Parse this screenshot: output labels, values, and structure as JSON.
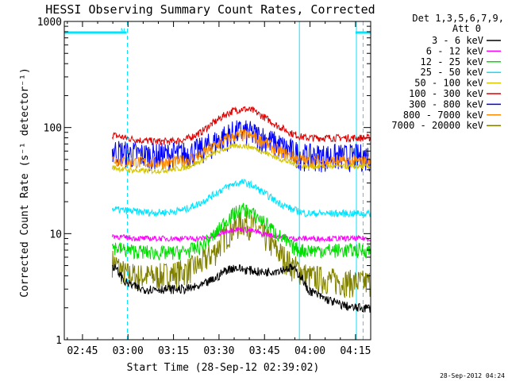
{
  "chart_data": {
    "type": "line",
    "title": "HESSI Observing Summary Count Rates, Corrected",
    "xlabel": "Start Time (28-Sep-12 02:39:02)",
    "ylabel": "Corrected Count Rate (s⁻¹ detector⁻¹)",
    "yscale": "log",
    "ylim": [
      1,
      1000
    ],
    "xlim_minutes_after_0239": [
      0,
      101
    ],
    "x_ticks": [
      "02:45",
      "03:00",
      "03:15",
      "03:30",
      "03:45",
      "04:00",
      "04:15"
    ],
    "y_ticks": [
      "1",
      "10",
      "100",
      "1000"
    ],
    "grid": false,
    "legend_header": [
      "Det 1,3,5,6,7,9,",
      "Att 0"
    ],
    "legend_position": "top-right-outside",
    "annotation": {
      "text": "N",
      "color": "#00e5ff"
    },
    "footer": "28-Sep-2012 04:24",
    "coverage": {
      "night_bars": [
        [
          0,
          20.5
        ],
        [
          96,
          101
        ]
      ],
      "dashed_lines": [
        20.8,
        98.5
      ],
      "solid_lines": [
        77.5,
        96.3
      ],
      "data_start": 15.8,
      "data_end": 102.5
    },
    "x_minutes": [
      16,
      20,
      25,
      30,
      35,
      40,
      45,
      50,
      53,
      56,
      59,
      62,
      65,
      70,
      75,
      78,
      80,
      85,
      90,
      95,
      100
    ],
    "series": [
      {
        "name": "3 - 6 keV",
        "color": "#000000",
        "values": [
          5.0,
          3.5,
          3.0,
          3.0,
          3.0,
          3.0,
          3.2,
          3.8,
          4.5,
          4.8,
          4.6,
          4.5,
          4.3,
          4.5,
          4.8,
          4.0,
          3.0,
          2.5,
          2.2,
          2.0,
          2.0
        ]
      },
      {
        "name": "6 - 12 keV",
        "color": "#ff00ff",
        "values": [
          9.5,
          9.2,
          9.0,
          9.0,
          9.0,
          9.0,
          9.0,
          9.5,
          10.5,
          11.0,
          11.0,
          10.6,
          10.0,
          9.5,
          9.0,
          9.0,
          9.0,
          9.0,
          9.0,
          9.0,
          9.0
        ]
      },
      {
        "name": "12 - 25 keV",
        "color": "#00dd00",
        "values": [
          7.5,
          7.0,
          6.8,
          6.6,
          6.6,
          6.8,
          7.5,
          10.0,
          13.0,
          15.5,
          17.0,
          15.5,
          13.5,
          10.0,
          7.5,
          7.0,
          7.0,
          7.0,
          7.0,
          7.0,
          7.0
        ]
      },
      {
        "name": "25 - 50 keV",
        "color": "#00e5ff",
        "values": [
          17.0,
          16.5,
          16.0,
          15.8,
          16.0,
          17.0,
          19.5,
          24.0,
          27.0,
          29.5,
          30.5,
          28.5,
          25.0,
          20.0,
          17.0,
          16.0,
          15.5,
          15.5,
          15.5,
          15.5,
          15.5
        ]
      },
      {
        "name": "50 - 100 keV",
        "color": "#d4c400",
        "values": [
          42.0,
          40.0,
          39.0,
          39.0,
          40.0,
          42.0,
          48.0,
          58.0,
          63.0,
          67.0,
          67.5,
          65.0,
          60.0,
          52.0,
          46.0,
          44.0,
          43.0,
          43.0,
          43.0,
          43.0,
          43.0
        ]
      },
      {
        "name": "100 - 300 keV",
        "color": "#e00000",
        "values": [
          85.0,
          80.0,
          76.0,
          74.0,
          74.0,
          77.0,
          90.0,
          115.0,
          132.0,
          145.0,
          150.0,
          145.0,
          130.0,
          105.0,
          88.0,
          82.0,
          80.0,
          80.0,
          80.0,
          80.0,
          80.0
        ]
      },
      {
        "name": "300 - 800 keV",
        "color": "#0000ff",
        "values": [
          61.0,
          58.0,
          56.0,
          55.0,
          56.0,
          57.0,
          62.0,
          74.0,
          83.0,
          90.0,
          92.0,
          88.0,
          82.0,
          70.0,
          60.0,
          56.0,
          54.0,
          54.0,
          54.0,
          54.0,
          54.0
        ]
      },
      {
        "name": "800 - 7000 keV",
        "color": "#ff8c00",
        "values": [
          50.0,
          48.0,
          47.0,
          47.0,
          47.0,
          49.0,
          55.0,
          68.0,
          76.0,
          83.0,
          85.0,
          82.0,
          75.0,
          62.0,
          53.0,
          50.0,
          48.0,
          48.0,
          48.0,
          48.0,
          48.0
        ]
      },
      {
        "name": "7000 - 20000 keV",
        "color": "#808000",
        "values": [
          5.5,
          4.2,
          4.0,
          4.0,
          4.2,
          4.5,
          5.2,
          7.0,
          9.5,
          11.5,
          13.0,
          12.0,
          10.0,
          7.0,
          5.0,
          4.5,
          4.0,
          3.8,
          3.6,
          3.5,
          3.5
        ]
      }
    ]
  }
}
